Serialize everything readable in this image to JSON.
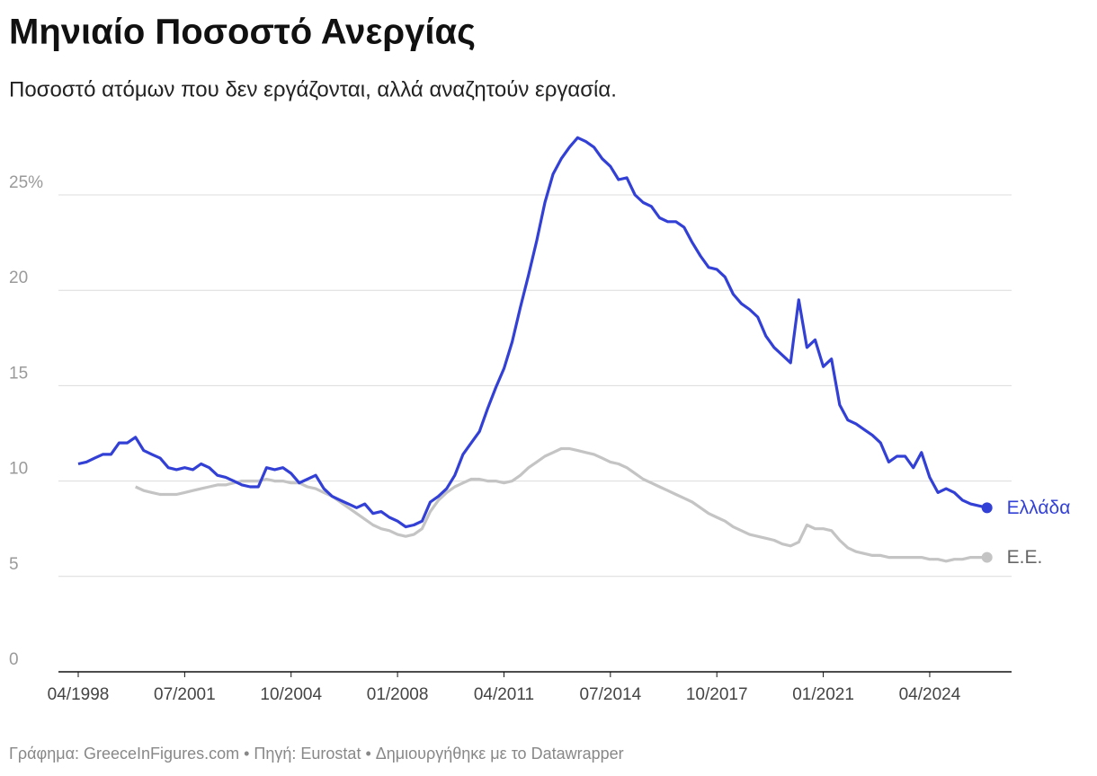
{
  "chart_data": {
    "type": "line",
    "title": "Μηνιαίο Ποσοστό Ανεργίας",
    "subtitle": "Ποσοστό ατόμων που δεν εργάζονται, αλλά αναζητούν εργασία.",
    "footer": "Γράφημα: GreeceInFigures.com • Πηγή: Eurostat • Δημιουργήθηκε με το Datawrapper",
    "x": [
      "04/1998",
      "07/1998",
      "10/1998",
      "01/1999",
      "04/1999",
      "07/1999",
      "10/1999",
      "01/2000",
      "04/2000",
      "07/2000",
      "10/2000",
      "01/2001",
      "04/2001",
      "07/2001",
      "10/2001",
      "01/2002",
      "04/2002",
      "07/2002",
      "10/2002",
      "01/2003",
      "04/2003",
      "07/2003",
      "10/2003",
      "01/2004",
      "04/2004",
      "07/2004",
      "10/2004",
      "01/2005",
      "04/2005",
      "07/2005",
      "10/2005",
      "01/2006",
      "04/2006",
      "07/2006",
      "10/2006",
      "01/2007",
      "04/2007",
      "07/2007",
      "10/2007",
      "01/2008",
      "04/2008",
      "07/2008",
      "10/2008",
      "01/2009",
      "04/2009",
      "07/2009",
      "10/2009",
      "01/2010",
      "04/2010",
      "07/2010",
      "10/2010",
      "01/2011",
      "04/2011",
      "07/2011",
      "10/2011",
      "01/2012",
      "04/2012",
      "07/2012",
      "10/2012",
      "01/2013",
      "04/2013",
      "07/2013",
      "10/2013",
      "01/2014",
      "04/2014",
      "07/2014",
      "10/2014",
      "01/2015",
      "04/2015",
      "07/2015",
      "10/2015",
      "01/2016",
      "04/2016",
      "07/2016",
      "10/2016",
      "01/2017",
      "04/2017",
      "07/2017",
      "10/2017",
      "01/2018",
      "04/2018",
      "07/2018",
      "10/2018",
      "01/2019",
      "04/2019",
      "07/2019",
      "10/2019",
      "01/2020",
      "04/2020",
      "07/2020",
      "10/2020",
      "01/2021",
      "04/2021",
      "07/2021",
      "10/2021",
      "01/2022",
      "04/2022",
      "07/2022",
      "10/2022",
      "01/2023",
      "04/2023",
      "07/2023",
      "10/2023",
      "01/2024",
      "04/2024",
      "07/2024",
      "10/2024",
      "01/2025",
      "04/2025",
      "07/2025",
      "10/2025",
      "01/2026"
    ],
    "series": [
      {
        "name": "Ελλάδα",
        "color": "#3340d6",
        "values": [
          10.9,
          11.0,
          11.2,
          11.4,
          11.4,
          12.0,
          12.0,
          12.3,
          11.6,
          11.4,
          11.2,
          10.7,
          10.6,
          10.7,
          10.6,
          10.9,
          10.7,
          10.3,
          10.2,
          10.0,
          9.8,
          9.7,
          9.7,
          10.7,
          10.6,
          10.7,
          10.4,
          9.9,
          10.1,
          10.3,
          9.6,
          9.2,
          9.0,
          8.8,
          8.6,
          8.8,
          8.3,
          8.4,
          8.1,
          7.9,
          7.6,
          7.7,
          7.9,
          8.9,
          9.2,
          9.6,
          10.3,
          11.4,
          12.0,
          12.6,
          13.8,
          14.9,
          15.9,
          17.3,
          19.1,
          20.8,
          22.6,
          24.6,
          26.1,
          26.9,
          27.5,
          28.0,
          27.8,
          27.5,
          26.9,
          26.5,
          25.8,
          25.9,
          25.0,
          24.6,
          24.4,
          23.8,
          23.6,
          23.6,
          23.3,
          22.5,
          21.8,
          21.2,
          21.1,
          20.7,
          19.8,
          19.3,
          19.0,
          18.6,
          17.6,
          17.0,
          16.6,
          16.2,
          19.5,
          17.0,
          17.4,
          16.0,
          16.4,
          14.0,
          13.2,
          13.0,
          12.7,
          12.4,
          12.0,
          11.0,
          11.3,
          11.3,
          10.7,
          11.5,
          10.2,
          9.4,
          9.6,
          9.4,
          9.0,
          8.8,
          8.7,
          8.6
        ]
      },
      {
        "name": "Ε.Ε.",
        "color": "#c4c4c4",
        "values": [
          null,
          null,
          null,
          null,
          null,
          null,
          null,
          9.7,
          9.5,
          9.4,
          9.3,
          9.3,
          9.3,
          9.4,
          9.5,
          9.6,
          9.7,
          9.8,
          9.8,
          9.9,
          10.0,
          10.0,
          10.0,
          10.1,
          10.0,
          10.0,
          9.9,
          9.9,
          9.7,
          9.6,
          9.4,
          9.2,
          8.9,
          8.6,
          8.3,
          8.0,
          7.7,
          7.5,
          7.4,
          7.2,
          7.1,
          7.2,
          7.5,
          8.4,
          9.0,
          9.4,
          9.7,
          9.9,
          10.1,
          10.1,
          10.0,
          10.0,
          9.9,
          10.0,
          10.3,
          10.7,
          11.0,
          11.3,
          11.5,
          11.7,
          11.7,
          11.6,
          11.5,
          11.4,
          11.2,
          11.0,
          10.9,
          10.7,
          10.4,
          10.1,
          9.9,
          9.7,
          9.5,
          9.3,
          9.1,
          8.9,
          8.6,
          8.3,
          8.1,
          7.9,
          7.6,
          7.4,
          7.2,
          7.1,
          7.0,
          6.9,
          6.7,
          6.6,
          6.8,
          7.7,
          7.5,
          7.5,
          7.4,
          6.9,
          6.5,
          6.3,
          6.2,
          6.1,
          6.1,
          6.0,
          6.0,
          6.0,
          6.0,
          6.0,
          5.9,
          5.9,
          5.8,
          5.9,
          5.9,
          6.0,
          6.0,
          6.0
        ]
      }
    ],
    "xlim": [
      "04/1998",
      "10/2026"
    ],
    "xticks": [
      "04/1998",
      "07/2001",
      "10/2004",
      "01/2008",
      "04/2011",
      "07/2014",
      "10/2017",
      "01/2021",
      "04/2024"
    ],
    "ylim": [
      0,
      28.5
    ],
    "yticks": [
      0,
      5,
      10,
      15,
      20,
      {
        "value": 25,
        "label": "25%"
      }
    ],
    "grid": true
  }
}
